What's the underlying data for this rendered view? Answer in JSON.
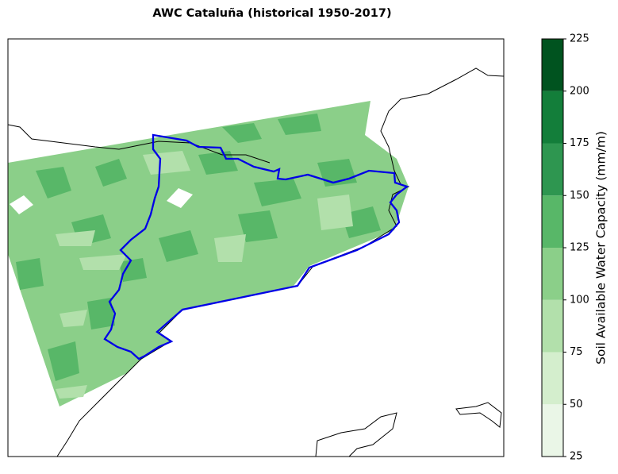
{
  "title": "AWC Cataluña (historical 1950-2017)",
  "colorbar": {
    "label": "Soil Available Water Capacity (mm/m)",
    "ticks": [
      25,
      50,
      75,
      100,
      125,
      150,
      175,
      200,
      225
    ],
    "colors": [
      "#eaf6e7",
      "#d4eecd",
      "#b2e0ab",
      "#8bcf89",
      "#58b768",
      "#2e9650",
      "#137e3a",
      "#00531f"
    ]
  }
}
